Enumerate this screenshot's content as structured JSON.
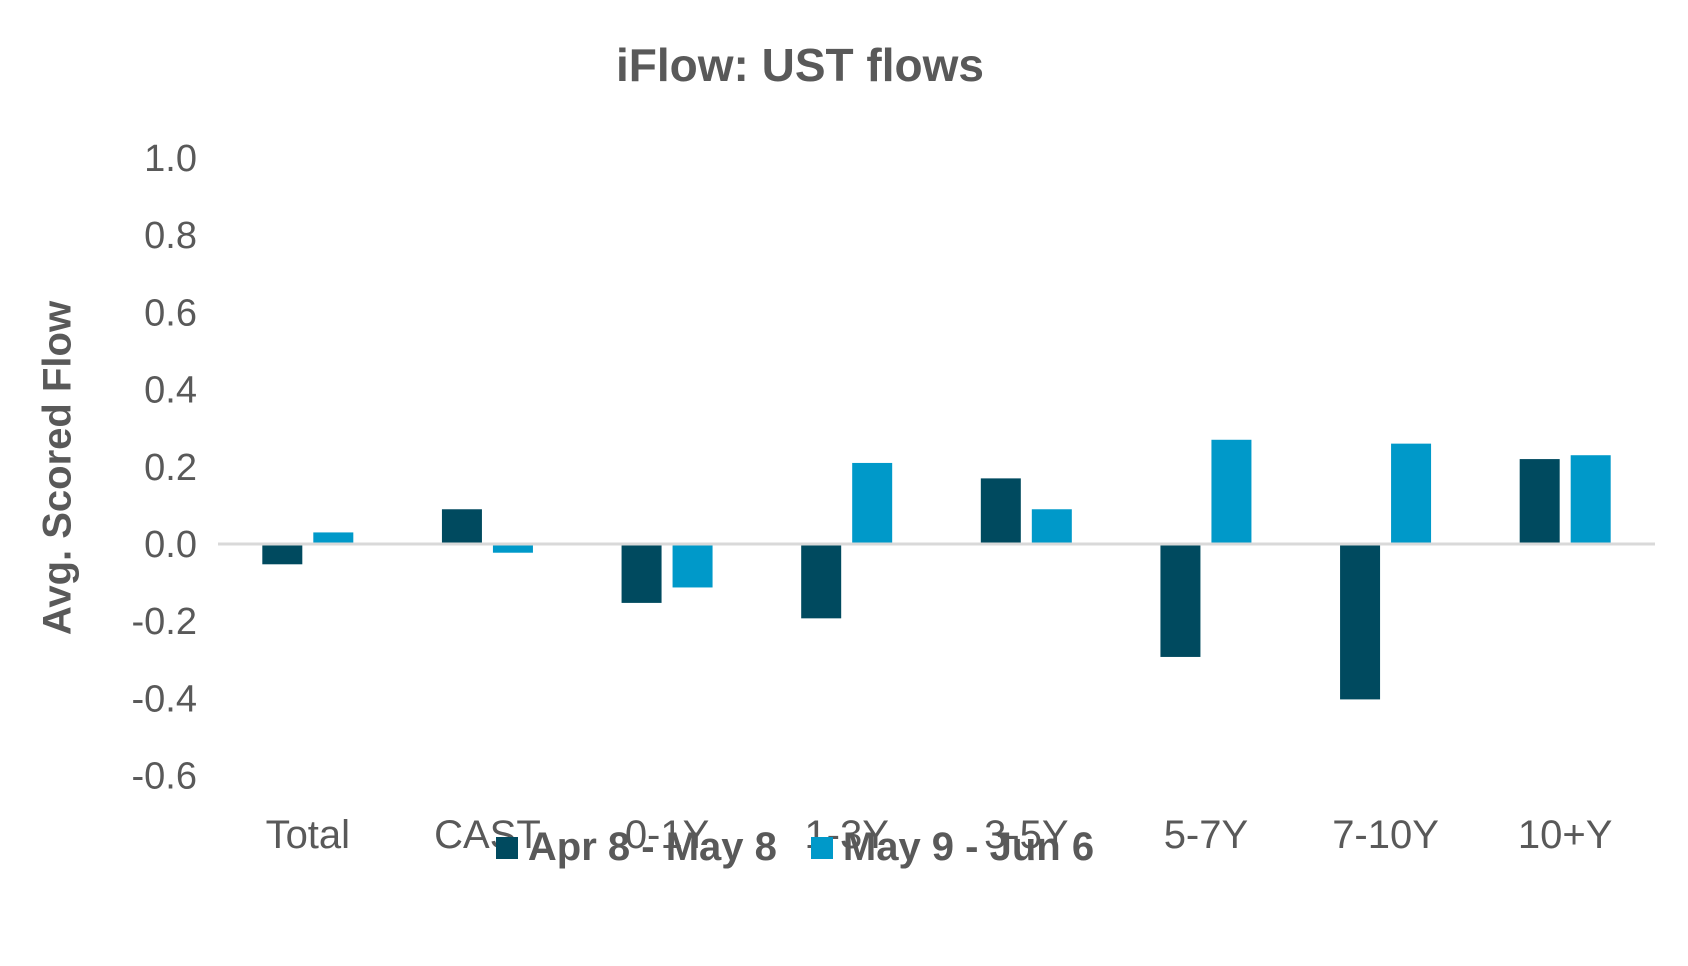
{
  "chart_data": {
    "type": "bar",
    "title": "iFlow: UST flows",
    "xlabel": "",
    "ylabel": "Avg. Scored Flow",
    "ylim": [
      -0.6,
      1.0
    ],
    "yticks": [
      1.0,
      0.8,
      0.6,
      0.4,
      0.2,
      0.0,
      -0.2,
      -0.4,
      -0.6
    ],
    "ytick_labels": [
      "1.0",
      "0.8",
      "0.6",
      "0.4",
      "0.2",
      "0.0",
      "-0.2",
      "-0.4",
      "-0.6"
    ],
    "categories": [
      "Total",
      "CAST",
      "0-1Y",
      "1-3Y",
      "3-5Y",
      "5-7Y",
      "7-10Y",
      "10+Y"
    ],
    "series": [
      {
        "name": "Apr 8 - May 8",
        "color": "#004A5F",
        "values": [
          -0.05,
          0.09,
          -0.15,
          -0.19,
          0.17,
          -0.29,
          -0.4,
          0.22
        ]
      },
      {
        "name": "May 9 - Jun 6",
        "color": "#0099C9",
        "values": [
          0.03,
          -0.02,
          -0.11,
          0.21,
          0.09,
          0.27,
          0.26,
          0.23
        ]
      }
    ],
    "grid": false,
    "legend_position": "bottom",
    "zero_line_color": "#D9D9D9"
  }
}
